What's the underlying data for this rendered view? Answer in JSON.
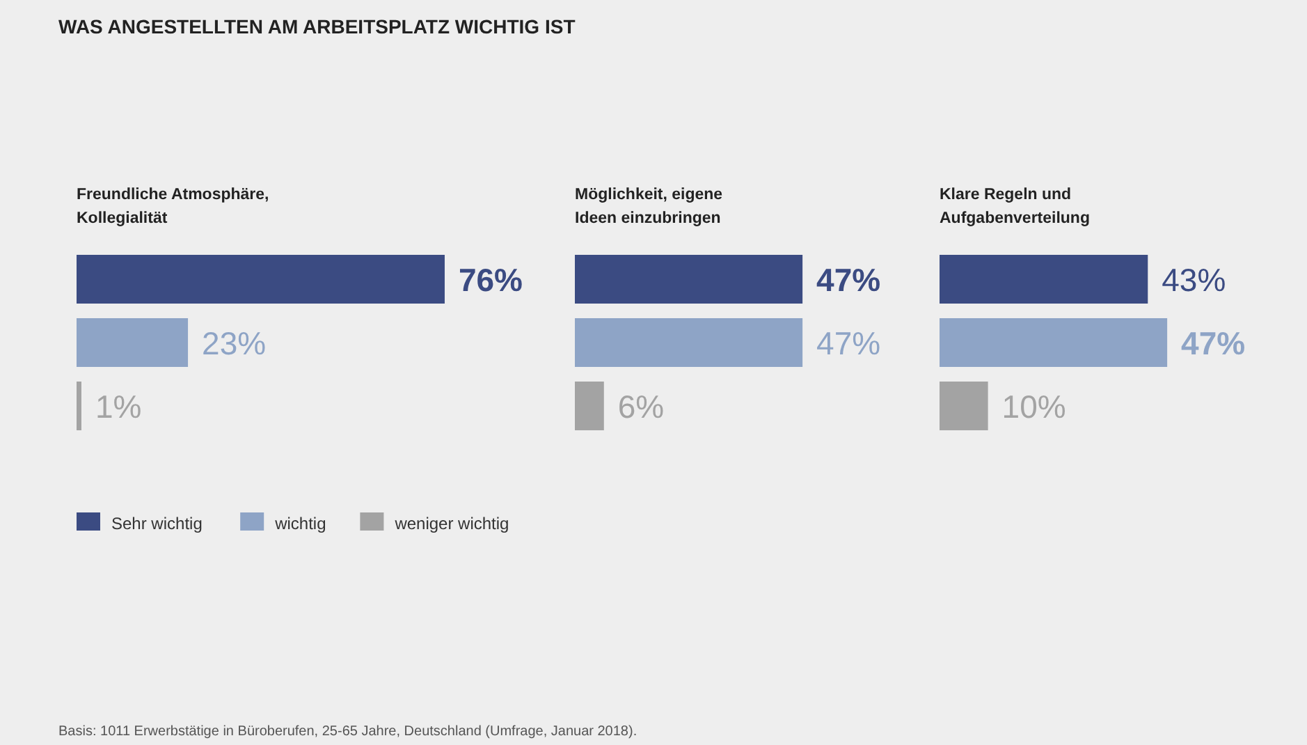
{
  "chart_data": [
    {
      "type": "bar",
      "orientation": "horizontal",
      "title": "Freundliche Atmosphäre,\nKollegialität",
      "categories": [
        null
      ],
      "legend": "bottom",
      "annotations": [
        "WAS ANGESTELLTEN AM ARBEITSPLATZ WICHTIG IST",
        "Basis: 1011 Erwerbstätige in Büroberufen, 25-65 Jahre, Deutschland (Umfrage, Januar 2018)."
      ],
      "series": [
        {
          "name": "Sehr wichtig",
          "color": "#3b4b82",
          "values": [
            76
          ],
          "value_labels": [
            "76%"
          ]
        },
        {
          "name": "wichtig",
          "color": "#8ea4c6",
          "values": [
            23
          ],
          "value_labels": [
            "23%"
          ]
        },
        {
          "name": "weniger wichtig",
          "color": "#a3a3a3",
          "values": [
            1
          ],
          "value_labels": [
            "1%"
          ]
        }
      ]
    },
    {
      "type": "bar",
      "orientation": "horizontal",
      "title": "Möglichkeit, eigene\nIdeen einzubringen",
      "categories": [
        null
      ],
      "series": [
        {
          "color": "#3b4b82",
          "values": [
            47
          ],
          "value_labels": [
            "47%"
          ]
        },
        {
          "color": "#8ea4c6",
          "values": [
            47
          ],
          "value_labels": [
            "47%"
          ]
        },
        {
          "color": "#a3a3a3",
          "values": [
            6
          ],
          "value_labels": [
            "6%"
          ]
        }
      ]
    },
    {
      "type": "bar",
      "orientation": "horizontal",
      "title": "Klare Regeln und\nAufgabenverteilung",
      "categories": [
        null
      ],
      "series": [
        {
          "color": "#3b4b82",
          "values": [
            43
          ],
          "value_labels": [
            "43%"
          ]
        },
        {
          "color": "#8ea4c6",
          "values": [
            47
          ],
          "value_labels": [
            "47%"
          ]
        },
        {
          "color": "#a3a3a3",
          "values": [
            10
          ],
          "value_labels": [
            "10%"
          ]
        }
      ]
    }
  ]
}
